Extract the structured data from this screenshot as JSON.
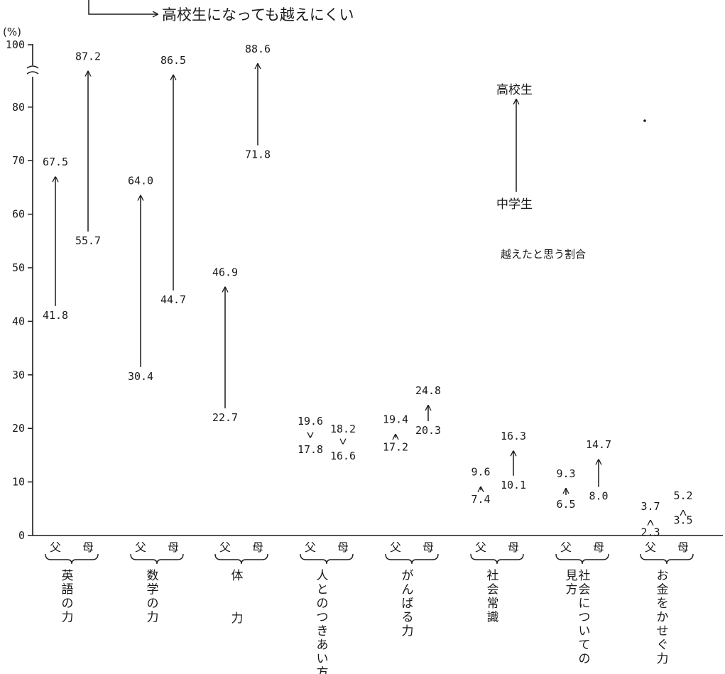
{
  "chart_data": {
    "type": "arrow",
    "top_note": "高校生になっても越えにくい",
    "y_unit": "(%)",
    "y_ticks": [
      "0",
      "10",
      "20",
      "30",
      "40",
      "50",
      "60",
      "70",
      "80",
      "100"
    ],
    "ylim": [
      0,
      100
    ],
    "legend": {
      "to": "高校生",
      "from": "中学生",
      "description": "越えたと思う割合"
    },
    "parent_labels": [
      "父",
      "母"
    ],
    "categories": [
      {
        "label": "英語の力",
        "values": [
          {
            "parent": "父",
            "from": 41.8,
            "to": 67.5,
            "from_label": "41.8",
            "to_label": "67.5"
          },
          {
            "parent": "母",
            "from": 55.7,
            "to": 87.2,
            "from_label": "55.7",
            "to_label": "87.2"
          }
        ]
      },
      {
        "label": "数学の力",
        "values": [
          {
            "parent": "父",
            "from": 30.4,
            "to": 64.0,
            "from_label": "30.4",
            "to_label": "64.0"
          },
          {
            "parent": "母",
            "from": 44.7,
            "to": 86.5,
            "from_label": "44.7",
            "to_label": "86.5"
          }
        ]
      },
      {
        "label": "体力",
        "values": [
          {
            "parent": "父",
            "from": 22.7,
            "to": 46.9,
            "from_label": "22.7",
            "to_label": "46.9"
          },
          {
            "parent": "母",
            "from": 71.8,
            "to": 88.6,
            "from_label": "71.8",
            "to_label": "88.6"
          }
        ]
      },
      {
        "label": "人とのつきあい方",
        "values": [
          {
            "parent": "父",
            "from": 19.6,
            "to": 17.8,
            "from_label": "19.6",
            "to_label": "17.8"
          },
          {
            "parent": "母",
            "from": 18.2,
            "to": 16.6,
            "from_label": "18.2",
            "to_label": "16.6"
          }
        ]
      },
      {
        "label": "がんばる力",
        "values": [
          {
            "parent": "父",
            "from": 17.2,
            "to": 19.4,
            "from_label": "17.2",
            "to_label": "19.4"
          },
          {
            "parent": "母",
            "from": 20.3,
            "to": 24.8,
            "from_label": "20.3",
            "to_label": "24.8"
          }
        ]
      },
      {
        "label": "社会常識",
        "values": [
          {
            "parent": "父",
            "from": 7.4,
            "to": 9.6,
            "from_label": "7.4",
            "to_label": "9.6"
          },
          {
            "parent": "母",
            "from": 10.1,
            "to": 16.3,
            "from_label": "10.1",
            "to_label": "16.3"
          }
        ]
      },
      {
        "label": "社会についての見方",
        "values": [
          {
            "parent": "父",
            "from": 6.5,
            "to": 9.3,
            "from_label": "6.5",
            "to_label": "9.3"
          },
          {
            "parent": "母",
            "from": 8.0,
            "to": 14.7,
            "from_label": "8.0",
            "to_label": "14.7"
          }
        ]
      },
      {
        "label": "お金をかせぐ力",
        "values": [
          {
            "parent": "父",
            "from": 3.7,
            "to": 2.3,
            "from_label": "3.7",
            "to_label": "2.3"
          },
          {
            "parent": "母",
            "from": 3.5,
            "to": 5.2,
            "from_label": "3.5",
            "to_label": "5.2"
          }
        ]
      }
    ]
  }
}
